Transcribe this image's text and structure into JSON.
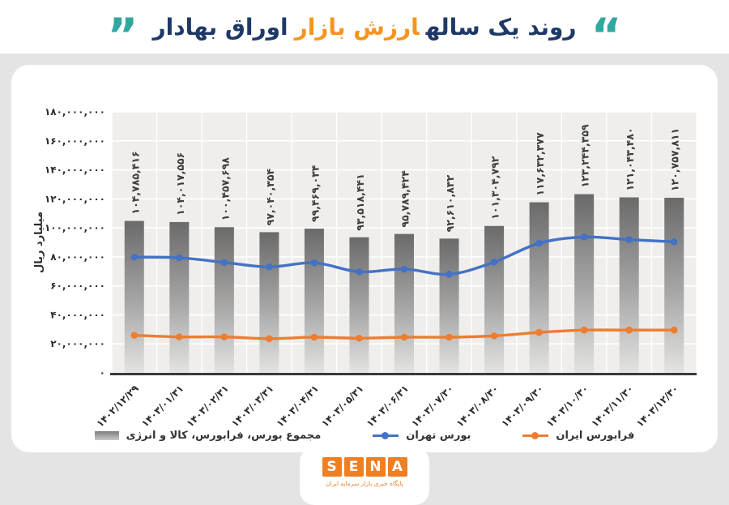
{
  "title": {
    "part1": "روند یک ساله",
    "part2": "ارزش بازار",
    "part3": "اوراق بهادار",
    "quote_open": "“",
    "quote_close": "”"
  },
  "colors": {
    "accent_teal": "#30a89f",
    "title_navy": "#1f3967",
    "title_orange": "#f7941d",
    "tehran_blue": "#4472c4",
    "farabourse_orange": "#ed7d31",
    "bar_gray_top": "#6a6a6a",
    "bar_gray_mid": "#a8a8a8",
    "bar_gray_bottom": "#e3e3e2",
    "plot_background": "#efeeec",
    "axis_line": "#3a3a3a",
    "sena_orange": "#ee7f23"
  },
  "chart_data": {
    "type": "combo: bar + 2 line series",
    "title": "روند یک ساله ارزش بازار اوراق بهادار",
    "ylabel": "میلیارد ریال",
    "ylim": [
      0,
      180000000
    ],
    "ytick_step": 20000000,
    "ytick_labels": [
      "۰",
      "۲۰,۰۰۰,۰۰۰",
      "۴۰,۰۰۰,۰۰۰",
      "۶۰,۰۰۰,۰۰۰",
      "۸۰,۰۰۰,۰۰۰",
      "۱۰۰,۰۰۰,۰۰۰",
      "۱۲۰,۰۰۰,۰۰۰",
      "۱۴۰,۰۰۰,۰۰۰",
      "۱۶۰,۰۰۰,۰۰۰",
      "۱۸۰,۰۰۰,۰۰۰"
    ],
    "grid": true,
    "legend_position": "bottom",
    "categories": [
      "۱۴۰۲/۱۲/۲۹",
      "۱۴۰۳/۰۱/۳۱",
      "۱۴۰۳/۰۲/۳۱",
      "۱۴۰۳/۰۳/۳۱",
      "۱۴۰۳/۰۴/۳۱",
      "۱۴۰۳/۰۵/۳۱",
      "۱۴۰۳/۰۶/۳۱",
      "۱۴۰۳/۰۷/۳۰",
      "۱۴۰۳/۰۸/۳۰",
      "۱۴۰۳/۰۹/۳۰",
      "۱۴۰۳/۱۰/۳۰",
      "۱۴۰۳/۱۱/۳۰",
      "۱۴۰۳/۱۲/۳۰"
    ],
    "bars": {
      "key": "total-market",
      "name": "مجموع بورس، فرابورس، کالا و انرژی",
      "values": [
        104785416,
        104017556,
        100457698,
        97040354,
        99469034,
        93518441,
        95789424,
        92610832,
        101304792,
        117632377,
        123244359,
        121043480,
        120757811
      ],
      "labels": [
        "۱۰۴,۷۸۵,۴۱۶",
        "۱۰۴,۰۱۷,۵۵۶",
        "۱۰۰,۴۵۷,۶۹۸",
        "۹۷,۰۴۰,۳۵۴",
        "۹۹,۴۶۹,۰۳۴",
        "۹۳,۵۱۸,۴۴۱",
        "۹۵,۷۸۹,۴۲۴",
        "۹۲,۶۱۰,۸۳۲",
        "۱۰۱,۳۰۴,۷۹۲",
        "۱۱۷,۶۳۲,۳۷۷",
        "۱۲۳,۲۴۴,۳۵۹",
        "۱۲۱,۰۴۳,۴۸۰",
        "۱۲۰,۷۵۷,۸۱۱"
      ]
    },
    "series": [
      {
        "key": "tehran-bourse",
        "name": "بورس تهران",
        "color": "#4472c4",
        "values_estimated": true,
        "values": [
          79800000,
          79400000,
          76200000,
          73100000,
          75900000,
          69700000,
          71600000,
          68000000,
          76400000,
          89400000,
          93700000,
          91900000,
          90400000
        ]
      },
      {
        "key": "iran-farabourse",
        "name": "فرابورس ایران",
        "color": "#ed7d31",
        "values_estimated": true,
        "values": [
          25900000,
          24800000,
          24800000,
          23600000,
          24600000,
          23900000,
          24600000,
          24600000,
          25500000,
          27900000,
          29500000,
          29500000,
          29500000
        ]
      }
    ]
  },
  "logo": {
    "letters": [
      "S",
      "E",
      "N",
      "A"
    ],
    "tagline": "پایگاه خبری بازار سرمایه ایران"
  }
}
